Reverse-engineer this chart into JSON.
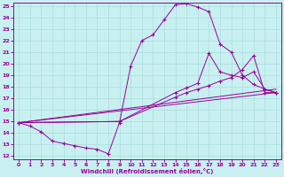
{
  "xlabel": "Windchill (Refroidissement éolien,°C)",
  "bg_color": "#c8f0f0",
  "line_color": "#990099",
  "grid_color": "#aadddd",
  "xlim": [
    -0.5,
    23.5
  ],
  "ylim": [
    11.7,
    25.3
  ],
  "xticks": [
    0,
    1,
    2,
    3,
    4,
    5,
    6,
    7,
    8,
    9,
    10,
    11,
    12,
    13,
    14,
    15,
    16,
    17,
    18,
    19,
    20,
    21,
    22,
    23
  ],
  "yticks": [
    12,
    13,
    14,
    15,
    16,
    17,
    18,
    19,
    20,
    21,
    22,
    23,
    24,
    25
  ],
  "line1_x": [
    0,
    1,
    2,
    3,
    4,
    5,
    6,
    7,
    8,
    9,
    10,
    11,
    12,
    13,
    14,
    15,
    16,
    17,
    18,
    19,
    20,
    21,
    22,
    23
  ],
  "line1_y": [
    14.9,
    14.6,
    14.1,
    13.3,
    13.1,
    12.9,
    12.7,
    12.6,
    12.2,
    14.9,
    19.8,
    22.0,
    22.5,
    23.8,
    25.1,
    25.2,
    24.9,
    24.5,
    21.7,
    21.0,
    19.0,
    18.2,
    17.8,
    17.5
  ],
  "line2_x": [
    0,
    9,
    14,
    15,
    16,
    17,
    18,
    19,
    20,
    21,
    22,
    23
  ],
  "line2_y": [
    14.9,
    15.0,
    17.5,
    17.9,
    18.3,
    20.9,
    19.3,
    19.0,
    18.8,
    19.3,
    17.8,
    17.5
  ],
  "line3_x": [
    0,
    9,
    14,
    15,
    16,
    17,
    18,
    19,
    20,
    21,
    22,
    23
  ],
  "line3_y": [
    14.9,
    15.0,
    17.1,
    17.5,
    17.8,
    18.1,
    18.5,
    18.8,
    19.5,
    20.7,
    17.5,
    17.5
  ]
}
